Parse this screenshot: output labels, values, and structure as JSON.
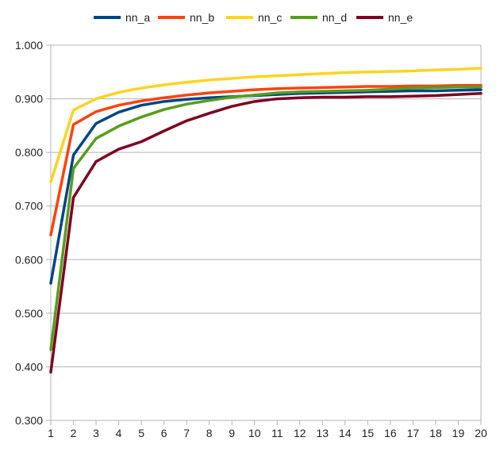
{
  "chart_data": {
    "type": "line",
    "title": "",
    "xlabel": "",
    "ylabel": "",
    "x": [
      1,
      2,
      3,
      4,
      5,
      6,
      7,
      8,
      9,
      10,
      11,
      12,
      13,
      14,
      15,
      16,
      17,
      18,
      19,
      20
    ],
    "xlim": [
      1,
      20
    ],
    "ylim": [
      0.3,
      1.0
    ],
    "yticks": [
      "0.300",
      "0.400",
      "0.500",
      "0.600",
      "0.700",
      "0.800",
      "0.900",
      "1.000"
    ],
    "grid": "horizontal",
    "legend_position": "top",
    "series": [
      {
        "name": "nn_a",
        "color": "#004586",
        "values": [
          0.556,
          0.795,
          0.854,
          0.875,
          0.888,
          0.895,
          0.899,
          0.902,
          0.904,
          0.906,
          0.908,
          0.91,
          0.911,
          0.912,
          0.913,
          0.914,
          0.915,
          0.915,
          0.916,
          0.917
        ]
      },
      {
        "name": "nn_b",
        "color": "#ff420e",
        "values": [
          0.646,
          0.852,
          0.876,
          0.888,
          0.896,
          0.902,
          0.907,
          0.911,
          0.914,
          0.917,
          0.919,
          0.92,
          0.921,
          0.922,
          0.923,
          0.923,
          0.924,
          0.924,
          0.925,
          0.925
        ]
      },
      {
        "name": "nn_c",
        "color": "#ffd320",
        "values": [
          0.745,
          0.879,
          0.9,
          0.912,
          0.92,
          0.926,
          0.931,
          0.935,
          0.938,
          0.941,
          0.943,
          0.945,
          0.947,
          0.949,
          0.95,
          0.951,
          0.952,
          0.954,
          0.955,
          0.957
        ]
      },
      {
        "name": "nn_d",
        "color": "#579d1c",
        "values": [
          0.432,
          0.77,
          0.826,
          0.849,
          0.866,
          0.88,
          0.89,
          0.897,
          0.903,
          0.907,
          0.911,
          0.913,
          0.914,
          0.915,
          0.916,
          0.918,
          0.92,
          0.921,
          0.922,
          0.922
        ]
      },
      {
        "name": "nn_e",
        "color": "#7e0021",
        "values": [
          0.39,
          0.716,
          0.783,
          0.806,
          0.82,
          0.84,
          0.859,
          0.873,
          0.886,
          0.895,
          0.9,
          0.902,
          0.903,
          0.903,
          0.904,
          0.904,
          0.905,
          0.906,
          0.908,
          0.91
        ]
      }
    ]
  }
}
